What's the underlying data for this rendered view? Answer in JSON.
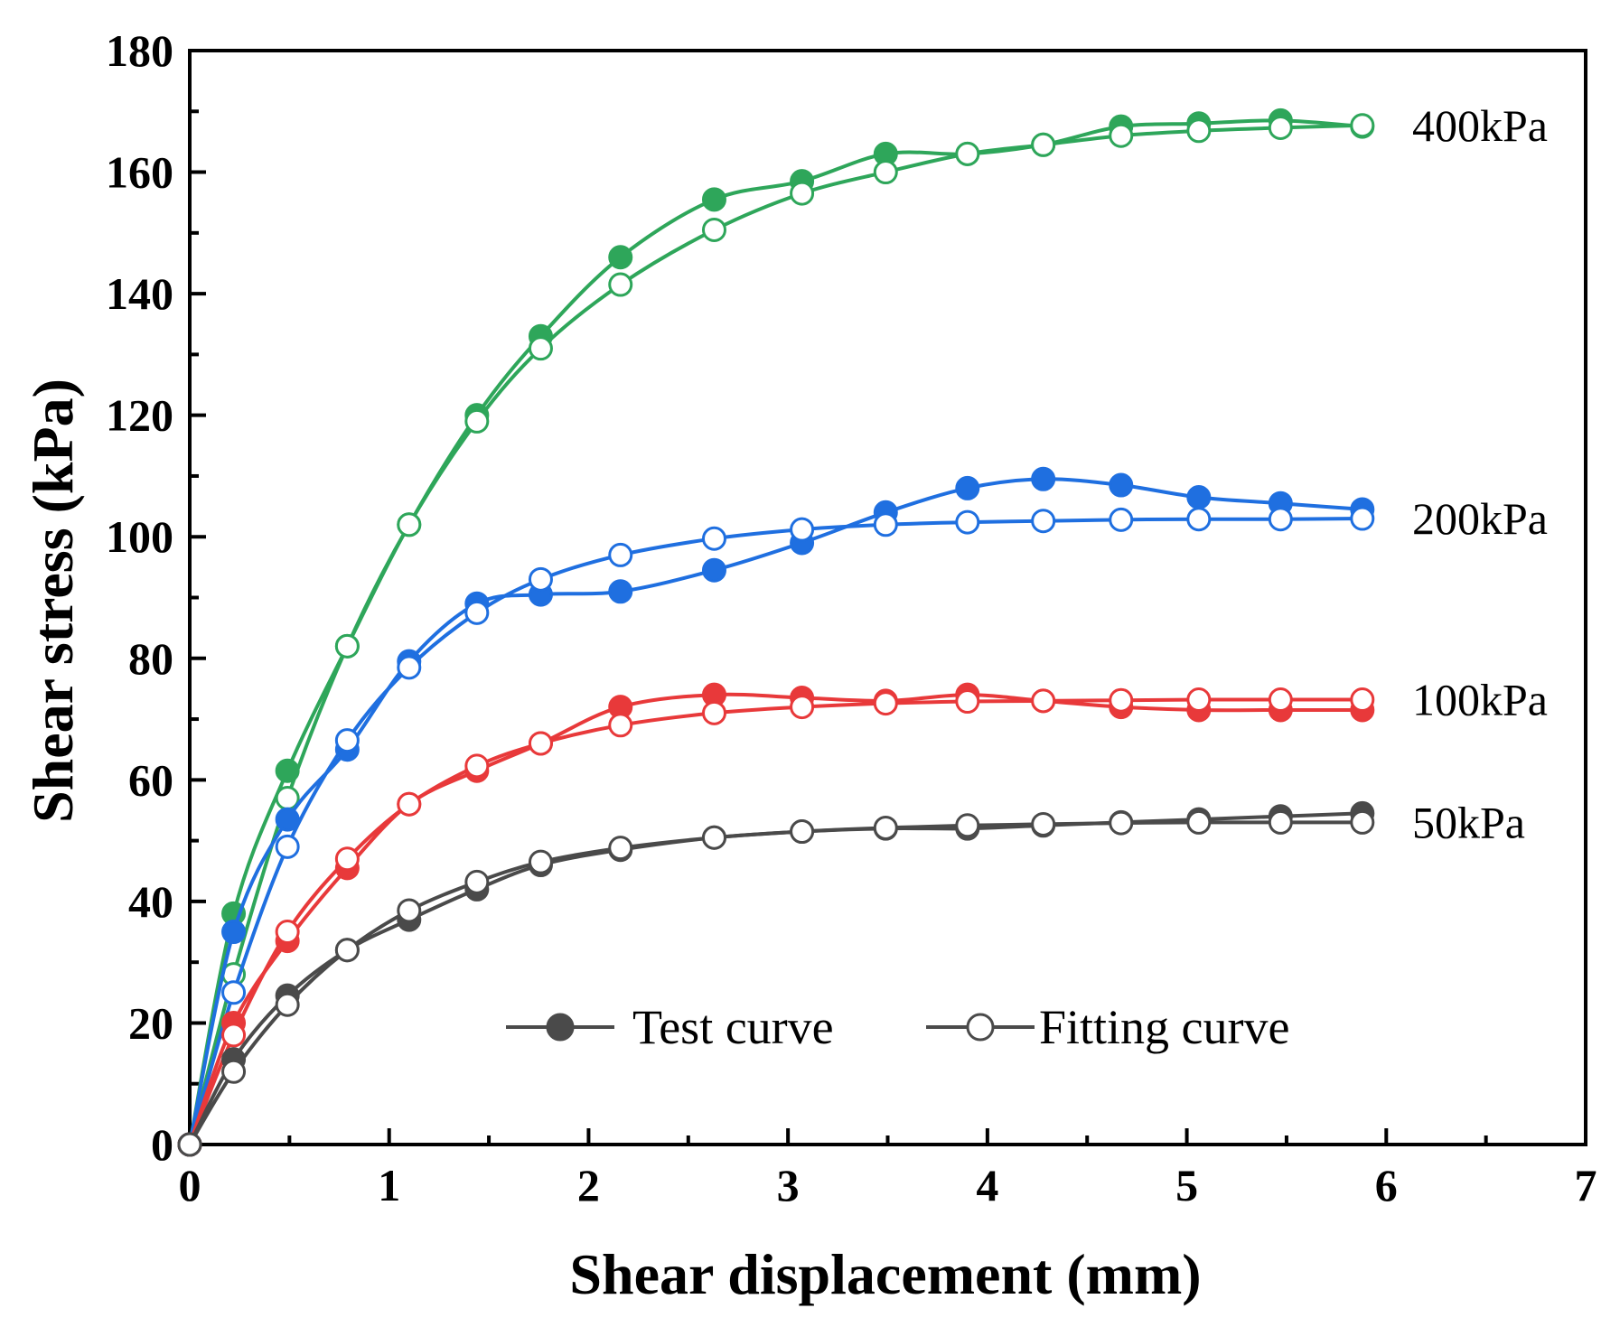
{
  "chart_data": {
    "type": "line",
    "xlabel": "Shear displacement (mm)",
    "ylabel": "Shear stress (kPa)",
    "xlim": [
      0,
      7
    ],
    "ylim": [
      0,
      180
    ],
    "xticks": [
      0,
      1,
      2,
      3,
      4,
      5,
      6,
      7
    ],
    "yticks": [
      0,
      20,
      40,
      60,
      80,
      100,
      120,
      140,
      160,
      180
    ],
    "legend": {
      "placement": "bottom-center",
      "entries": [
        {
          "label": "Test curve",
          "marker": "filled-circle"
        },
        {
          "label": "Fitting curve",
          "marker": "open-circle"
        }
      ]
    },
    "groups": [
      {
        "label": "400kPa",
        "color": "#2ea65a",
        "test": {
          "x": [
            0,
            0.22,
            0.49,
            0.79,
            1.1,
            1.44,
            1.76,
            2.16,
            2.63,
            3.07,
            3.49,
            3.9,
            4.28,
            4.67,
            5.06,
            5.47,
            5.88
          ],
          "y": [
            0,
            38,
            61.5,
            82,
            102,
            120,
            133,
            146,
            155.5,
            158.5,
            163,
            163,
            164.5,
            167.5,
            168,
            168.5,
            167.5
          ]
        },
        "fit": {
          "x": [
            0,
            0.22,
            0.49,
            0.79,
            1.1,
            1.44,
            1.76,
            2.16,
            2.63,
            3.07,
            3.49,
            3.9,
            4.28,
            4.67,
            5.06,
            5.47,
            5.88
          ],
          "y": [
            0,
            28,
            57,
            82,
            102,
            119,
            131,
            141.5,
            150.5,
            156.5,
            160,
            163,
            164.5,
            166,
            166.8,
            167.3,
            167.7
          ]
        }
      },
      {
        "label": "200kPa",
        "color": "#1f6fe0",
        "test": {
          "x": [
            0,
            0.22,
            0.49,
            0.79,
            1.1,
            1.44,
            1.76,
            2.16,
            2.63,
            3.07,
            3.49,
            3.9,
            4.28,
            4.67,
            5.06,
            5.47,
            5.88
          ],
          "y": [
            0,
            35,
            53.5,
            65,
            79.5,
            89,
            90.5,
            91,
            94.5,
            99,
            104,
            108,
            109.5,
            108.5,
            106.5,
            105.5,
            104.5
          ]
        },
        "fit": {
          "x": [
            0,
            0.22,
            0.49,
            0.79,
            1.1,
            1.44,
            1.76,
            2.16,
            2.63,
            3.07,
            3.49,
            3.9,
            4.28,
            4.67,
            5.06,
            5.47,
            5.88
          ],
          "y": [
            0,
            25,
            49,
            66.5,
            78.5,
            87.5,
            93,
            97,
            99.7,
            101.2,
            102,
            102.4,
            102.6,
            102.8,
            102.9,
            102.9,
            103
          ]
        }
      },
      {
        "label": "100kPa",
        "color": "#e8393a",
        "test": {
          "x": [
            0,
            0.22,
            0.49,
            0.79,
            1.1,
            1.44,
            1.76,
            2.16,
            2.63,
            3.07,
            3.49,
            3.9,
            4.28,
            4.67,
            5.06,
            5.47,
            5.88
          ],
          "y": [
            0,
            20,
            33.5,
            45.5,
            56,
            61.5,
            66,
            72,
            74,
            73.5,
            73,
            74,
            73,
            72,
            71.5,
            71.5,
            71.5
          ]
        },
        "fit": {
          "x": [
            0,
            0.22,
            0.49,
            0.79,
            1.1,
            1.44,
            1.76,
            2.16,
            2.63,
            3.07,
            3.49,
            3.9,
            4.28,
            4.67,
            5.06,
            5.47,
            5.88
          ],
          "y": [
            0,
            18,
            35,
            47,
            56,
            62.3,
            66,
            69,
            71,
            72,
            72.6,
            72.9,
            73,
            73.1,
            73.2,
            73.2,
            73.2
          ]
        }
      },
      {
        "label": "50kPa",
        "color": "#4a4a4a",
        "test": {
          "x": [
            0,
            0.22,
            0.49,
            0.79,
            1.1,
            1.44,
            1.76,
            2.16,
            2.63,
            3.07,
            3.49,
            3.9,
            4.28,
            4.67,
            5.06,
            5.47,
            5.88
          ],
          "y": [
            0,
            14,
            24.5,
            32,
            37,
            42,
            46,
            48.5,
            50.5,
            51.5,
            52,
            52,
            52.5,
            53,
            53.5,
            54,
            54.5
          ]
        },
        "fit": {
          "x": [
            0,
            0.22,
            0.49,
            0.79,
            1.1,
            1.44,
            1.76,
            2.16,
            2.63,
            3.07,
            3.49,
            3.9,
            4.28,
            4.67,
            5.06,
            5.47,
            5.88
          ],
          "y": [
            0,
            12,
            23,
            32,
            38.5,
            43.2,
            46.5,
            48.8,
            50.5,
            51.5,
            52.1,
            52.5,
            52.7,
            52.9,
            53,
            53,
            53
          ]
        }
      }
    ]
  }
}
